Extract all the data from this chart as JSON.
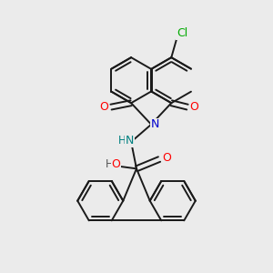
{
  "background_color": "#ebebeb",
  "bond_color": "#1a1a1a",
  "bond_width": 1.4,
  "figsize": [
    3.0,
    3.0
  ],
  "dpi": 100,
  "atom_colors": {
    "O": "#ff0000",
    "N_imide": "#0000cc",
    "N_amine": "#008080",
    "Cl": "#00aa00",
    "H": "#555555",
    "C": "#1a1a1a"
  }
}
